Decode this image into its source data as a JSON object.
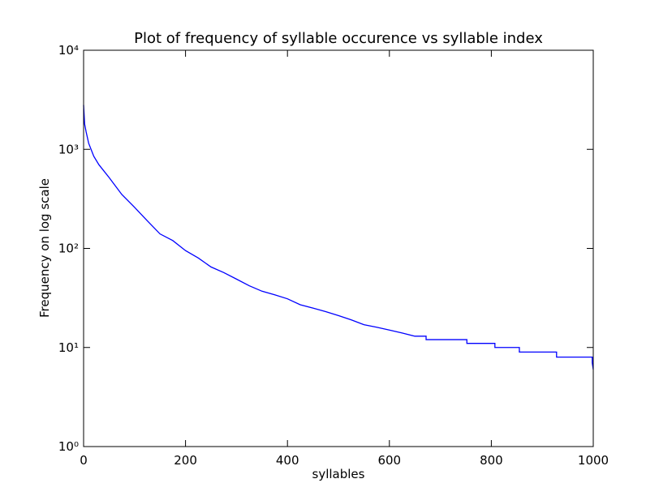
{
  "chart_data": {
    "type": "line",
    "title": "Plot of frequency of syllable occurence vs syllable index",
    "xlabel": "syllables",
    "ylabel": "Frequency on log scale",
    "yscale": "log",
    "xlim": [
      0,
      1000
    ],
    "xticks": [
      0,
      200,
      400,
      600,
      800,
      1000
    ],
    "ylim": [
      1,
      10000
    ],
    "yticks": [
      {
        "value": 1,
        "label": "10⁰"
      },
      {
        "value": 10,
        "label": "10¹"
      },
      {
        "value": 100,
        "label": "10²"
      },
      {
        "value": 1000,
        "label": "10³"
      },
      {
        "value": 10000,
        "label": "10⁴"
      }
    ],
    "series": [
      {
        "color": "#0000ff",
        "x": [
          0,
          2,
          5,
          10,
          20,
          30,
          50,
          75,
          100,
          125,
          150,
          175,
          200,
          225,
          250,
          275,
          300,
          325,
          350,
          375,
          400,
          425,
          450,
          475,
          500,
          525,
          550,
          575,
          600,
          625,
          650,
          672,
          672,
          752,
          752,
          807,
          807,
          855,
          855,
          928,
          928,
          998,
          998,
          1000
        ],
        "values": [
          2800,
          1800,
          1500,
          1150,
          850,
          700,
          520,
          350,
          260,
          190,
          140,
          120,
          95,
          80,
          65,
          57,
          49,
          42,
          37,
          34,
          31,
          27,
          25,
          23,
          21,
          19,
          17,
          16,
          15,
          14,
          13,
          13,
          12,
          12,
          11,
          11,
          10,
          10,
          9,
          9,
          8,
          8,
          7,
          6
        ]
      }
    ]
  }
}
